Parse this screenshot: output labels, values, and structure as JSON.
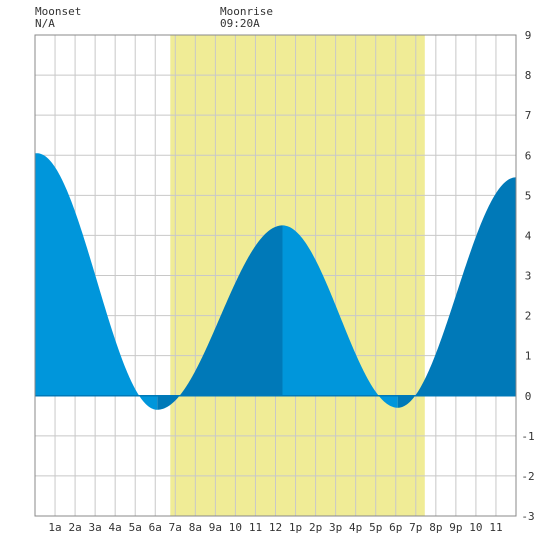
{
  "header": {
    "moonset_label": "Moonset",
    "moonset_value": "N/A",
    "moonrise_label": "Moonrise",
    "moonrise_value": "09:20A"
  },
  "chart_data": {
    "type": "area",
    "title": "",
    "xlabel": "",
    "ylabel": "",
    "xlim": [
      0,
      24
    ],
    "ylim": [
      -3,
      9
    ],
    "y_ticks": [
      -3,
      -2,
      -1,
      0,
      1,
      2,
      3,
      4,
      5,
      6,
      7,
      8,
      9
    ],
    "x_tick_labels": [
      "1a",
      "2a",
      "3a",
      "4a",
      "5a",
      "6a",
      "7a",
      "8a",
      "9a",
      "10",
      "11",
      "12",
      "1p",
      "2p",
      "3p",
      "4p",
      "5p",
      "6p",
      "7p",
      "8p",
      "9p",
      "10",
      "11"
    ],
    "grid": true,
    "daylight": {
      "start_hour": 6.75,
      "end_hour": 19.45
    },
    "tide_extrema": [
      {
        "hour": 0.1,
        "height": 6.05,
        "type": "high"
      },
      {
        "hour": 6.1,
        "height": -0.35,
        "type": "low"
      },
      {
        "hour": 12.35,
        "height": 4.25,
        "type": "high"
      },
      {
        "hour": 18.1,
        "height": -0.3,
        "type": "low"
      },
      {
        "hour": 24.0,
        "height": 5.45,
        "type": "rising"
      }
    ],
    "colors": {
      "falling": "#0096db",
      "rising": "#0079b8",
      "daylight": "#f0ec96",
      "grid": "#c8c8c8",
      "zero_line": "#0079b8"
    }
  }
}
